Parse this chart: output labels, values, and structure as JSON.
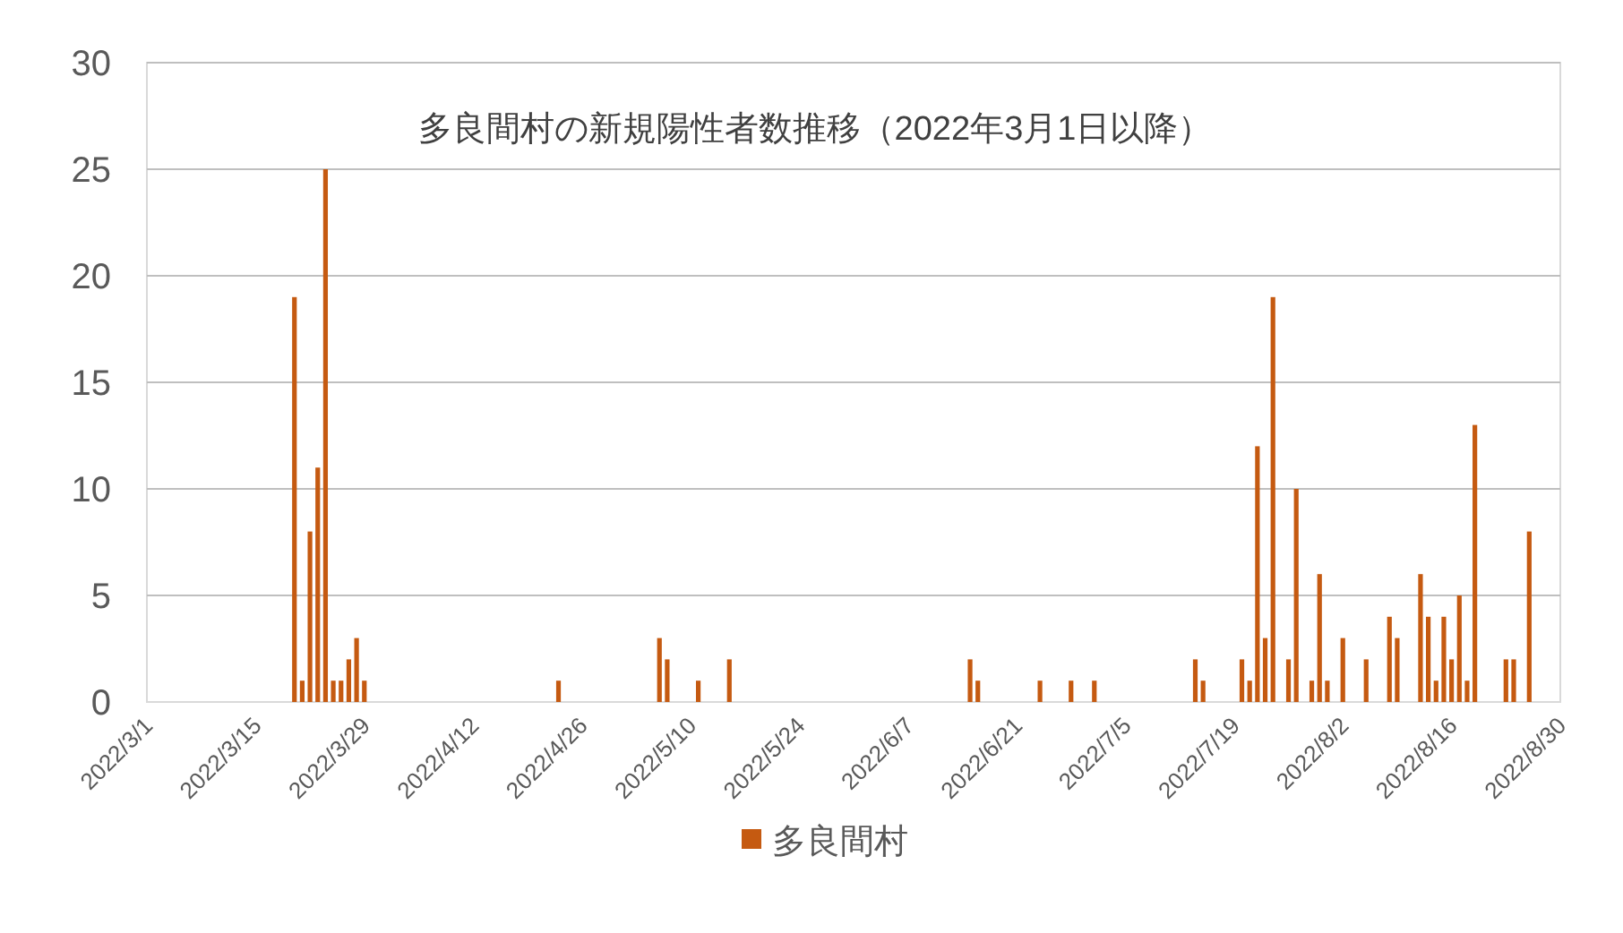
{
  "chart_data": {
    "type": "bar",
    "title": "多良間村の新規陽性者数推移（2022年3月1日以降）",
    "x": [
      "2022-03-20",
      "2022-03-21",
      "2022-03-22",
      "2022-03-23",
      "2022-03-24",
      "2022-03-25",
      "2022-03-26",
      "2022-03-27",
      "2022-03-28",
      "2022-03-29",
      "2022-04-23",
      "2022-05-06",
      "2022-05-07",
      "2022-05-11",
      "2022-05-15",
      "2022-06-15",
      "2022-06-16",
      "2022-06-24",
      "2022-06-28",
      "2022-07-01",
      "2022-07-14",
      "2022-07-15",
      "2022-07-20",
      "2022-07-21",
      "2022-07-22",
      "2022-07-23",
      "2022-07-24",
      "2022-07-26",
      "2022-07-27",
      "2022-07-29",
      "2022-07-30",
      "2022-07-31",
      "2022-08-02",
      "2022-08-05",
      "2022-08-08",
      "2022-08-09",
      "2022-08-12",
      "2022-08-13",
      "2022-08-14",
      "2022-08-15",
      "2022-08-16",
      "2022-08-17",
      "2022-08-18",
      "2022-08-19",
      "2022-08-23",
      "2022-08-24",
      "2022-08-26"
    ],
    "series": [
      {
        "name": "多良間村",
        "color": "#c55a11",
        "values": [
          19,
          1,
          8,
          11,
          25,
          1,
          1,
          2,
          3,
          1,
          1,
          3,
          2,
          1,
          2,
          2,
          1,
          1,
          1,
          1,
          2,
          1,
          2,
          1,
          12,
          3,
          19,
          2,
          10,
          1,
          6,
          1,
          3,
          2,
          4,
          3,
          6,
          4,
          1,
          4,
          2,
          5,
          1,
          13,
          2,
          2,
          8
        ]
      }
    ],
    "xlim": [
      "2022-03-01",
      "2022-08-30"
    ],
    "xticks": [
      {
        "value": "2022-03-01",
        "label": "2022/3/1"
      },
      {
        "value": "2022-03-15",
        "label": "2022/3/15"
      },
      {
        "value": "2022-03-29",
        "label": "2022/3/29"
      },
      {
        "value": "2022-04-12",
        "label": "2022/4/12"
      },
      {
        "value": "2022-04-26",
        "label": "2022/4/26"
      },
      {
        "value": "2022-05-10",
        "label": "2022/5/10"
      },
      {
        "value": "2022-05-24",
        "label": "2022/5/24"
      },
      {
        "value": "2022-06-07",
        "label": "2022/6/7"
      },
      {
        "value": "2022-06-21",
        "label": "2022/6/21"
      },
      {
        "value": "2022-07-05",
        "label": "2022/7/5"
      },
      {
        "value": "2022-07-19",
        "label": "2022/7/19"
      },
      {
        "value": "2022-08-02",
        "label": "2022/8/2"
      },
      {
        "value": "2022-08-16",
        "label": "2022/8/16"
      },
      {
        "value": "2022-08-30",
        "label": "2022/8/30"
      }
    ],
    "ylim": [
      0,
      30
    ],
    "yticks": [
      0,
      5,
      10,
      15,
      20,
      25,
      30
    ],
    "grid": "y",
    "legend": "bottom"
  }
}
